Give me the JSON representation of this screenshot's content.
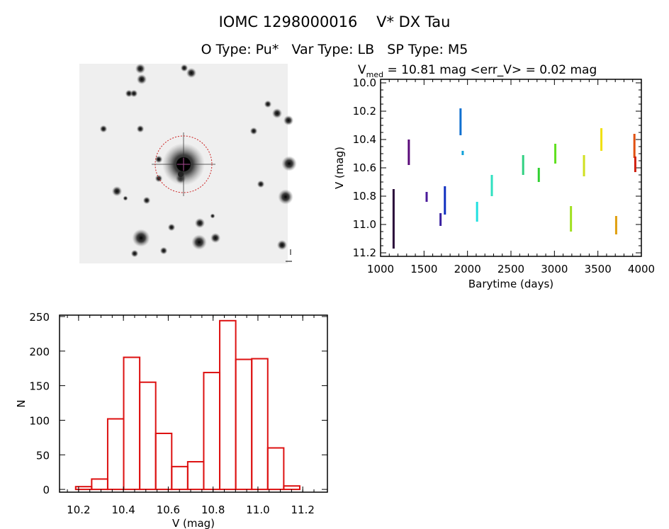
{
  "header": {
    "title": "IOMC 1298000016    V* DX Tau",
    "subtitle": "O Type: Pu*   Var Type: LB   SP Type: M5"
  },
  "image_panel": {
    "kind": "sky-image",
    "marker_color": "#cc2222"
  },
  "chart_data": [
    {
      "type": "scatter",
      "title_main": "V",
      "title_sub": "med",
      "title_rest": " = 10.81 mag <err_V> = 0.02 mag",
      "xlabel": "Barytime (days)",
      "ylabel": "V (mag)",
      "xlim": [
        1000,
        4000
      ],
      "ylim": [
        11.225,
        9.975
      ],
      "y_inverted": true,
      "xticks": [
        "1000",
        "1500",
        "2000",
        "2500",
        "3000",
        "3500",
        "4000"
      ],
      "yticks": [
        "10.0",
        "10.2",
        "10.4",
        "10.6",
        "10.8",
        "11.0",
        "11.2"
      ],
      "series": [
        {
          "x": 1150,
          "vmin": 10.75,
          "vmax": 11.17,
          "color": "#2a0a3a"
        },
        {
          "x": 1325,
          "vmin": 10.4,
          "vmax": 10.58,
          "color": "#5a0a7a"
        },
        {
          "x": 1530,
          "vmin": 10.77,
          "vmax": 10.84,
          "color": "#4a1a9a"
        },
        {
          "x": 1690,
          "vmin": 10.92,
          "vmax": 11.01,
          "color": "#3a20a0"
        },
        {
          "x": 1740,
          "vmin": 10.73,
          "vmax": 10.93,
          "color": "#1030c0"
        },
        {
          "x": 1920,
          "vmin": 10.18,
          "vmax": 10.37,
          "color": "#1070d0"
        },
        {
          "x": 1945,
          "vmin": 10.48,
          "vmax": 10.51,
          "color": "#10a0d8"
        },
        {
          "x": 2110,
          "vmin": 10.84,
          "vmax": 10.98,
          "color": "#20e0e0"
        },
        {
          "x": 2280,
          "vmin": 10.65,
          "vmax": 10.8,
          "color": "#30e0c0"
        },
        {
          "x": 2640,
          "vmin": 10.51,
          "vmax": 10.65,
          "color": "#30d080"
        },
        {
          "x": 2820,
          "vmin": 10.6,
          "vmax": 10.7,
          "color": "#30d030"
        },
        {
          "x": 3010,
          "vmin": 10.43,
          "vmax": 10.57,
          "color": "#60e020"
        },
        {
          "x": 3190,
          "vmin": 10.87,
          "vmax": 11.05,
          "color": "#a0e020"
        },
        {
          "x": 3340,
          "vmin": 10.51,
          "vmax": 10.66,
          "color": "#d0e020"
        },
        {
          "x": 3540,
          "vmin": 10.32,
          "vmax": 10.48,
          "color": "#f0e010"
        },
        {
          "x": 3710,
          "vmin": 10.94,
          "vmax": 11.07,
          "color": "#e0a010"
        },
        {
          "x": 3920,
          "vmin": 10.36,
          "vmax": 10.53,
          "color": "#e05010"
        },
        {
          "x": 3930,
          "vmin": 10.52,
          "vmax": 10.63,
          "color": "#d02010"
        }
      ]
    },
    {
      "type": "bar",
      "subtype": "histogram",
      "xlabel": "V (mag)",
      "ylabel": "N",
      "xlim": [
        10.115,
        11.31
      ],
      "ylim": [
        -4,
        252
      ],
      "xticks": [
        "10.2",
        "10.4",
        "10.6",
        "10.8",
        "11.0",
        "11.2"
      ],
      "yticks": [
        "0",
        "50",
        "100",
        "150",
        "200",
        "250"
      ],
      "bin_start": 10.187,
      "bin_width": 0.0714,
      "values": [
        4,
        15,
        102,
        191,
        155,
        81,
        33,
        40,
        169,
        244,
        188,
        189,
        60,
        5
      ],
      "color": "#dd1111"
    }
  ]
}
